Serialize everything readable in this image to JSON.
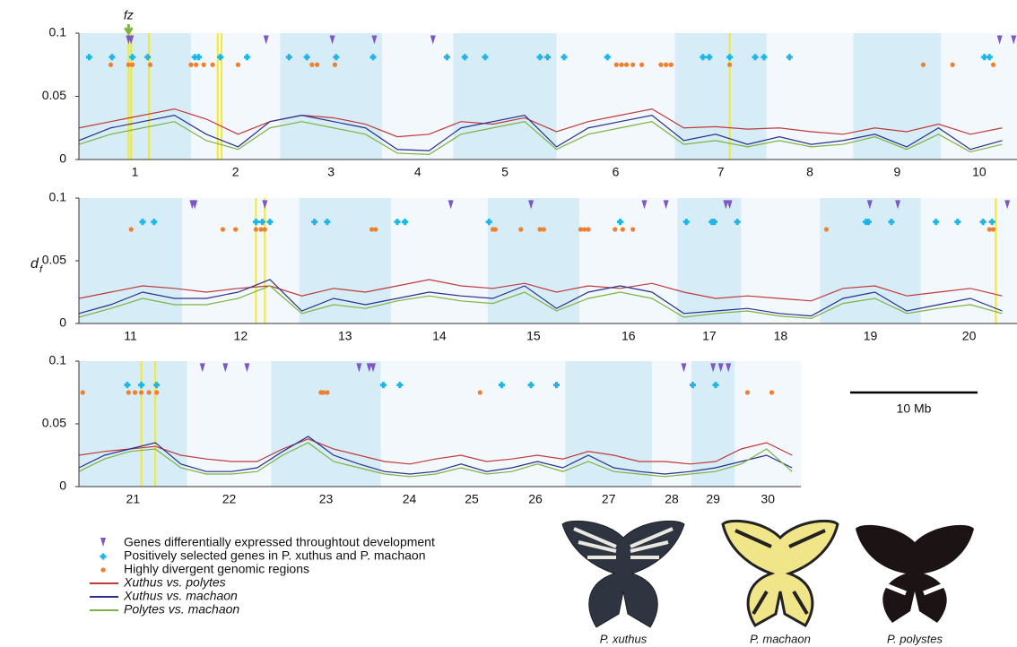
{
  "ylabel": {
    "main": "d",
    "sub": "f"
  },
  "scale_bar": {
    "length": 10,
    "label": "10 Mb"
  },
  "images": [
    {
      "caption": "P. xuthus"
    },
    {
      "caption": "P. machaon"
    },
    {
      "caption": "P. polystes"
    }
  ],
  "chart_data": [
    {
      "type": "line",
      "xlim": [
        0,
        73.7
      ],
      "ylim": [
        0,
        0.1
      ],
      "yticks": [
        0,
        0.05,
        0.1
      ],
      "annotation": {
        "text": "fz",
        "x": 3.9,
        "color": "#7cb342"
      },
      "chromosomes": [
        {
          "label": "1",
          "start": 0,
          "end": 8.8,
          "shaded": true
        },
        {
          "label": "2",
          "start": 8.8,
          "end": 15.8,
          "shaded": false
        },
        {
          "label": "3",
          "start": 15.8,
          "end": 23.8,
          "shaded": true
        },
        {
          "label": "4",
          "start": 23.8,
          "end": 29.4,
          "shaded": false
        },
        {
          "label": "5",
          "start": 29.4,
          "end": 37.5,
          "shaded": true
        },
        {
          "label": "6",
          "start": 37.5,
          "end": 46.8,
          "shaded": false
        },
        {
          "label": "7",
          "start": 46.8,
          "end": 54.0,
          "shaded": true
        },
        {
          "label": "8",
          "start": 54.0,
          "end": 60.8,
          "shaded": false
        },
        {
          "label": "9",
          "start": 60.8,
          "end": 67.7,
          "shaded": true
        },
        {
          "label": "10",
          "start": 67.7,
          "end": 73.7,
          "shaded": false
        }
      ],
      "highlights": {
        "color": "#f2ea2c",
        "x": [
          3.9,
          4.1,
          5.5,
          10.9,
          11.2,
          51.1
        ]
      },
      "markers": [
        {
          "name": "Genes differentially expressed throughtout development",
          "shape": "triangle",
          "color": "#7e57c2",
          "y": 0.094,
          "x": [
            3.9,
            4.1,
            14.7,
            19.9,
            23.2,
            27.8,
            72.3,
            73.4
          ]
        },
        {
          "name": "Positively selected genes in P. xuthus and P. machaon",
          "shape": "cross",
          "color": "#1eb4e6",
          "y": 0.081,
          "x": [
            0.8,
            2.6,
            4.2,
            5.4,
            9.1,
            9.4,
            11.1,
            13.2,
            16.5,
            17.9,
            20.2,
            23.1,
            28.9,
            30.3,
            31.9,
            36.2,
            36.8,
            38.1,
            41.5,
            49.0,
            49.5,
            51.1,
            53.1,
            53.8,
            55.8,
            71.1,
            71.5
          ]
        },
        {
          "name": "Highly divergent genomic regions",
          "shape": "dot",
          "color": "#f07f2e",
          "y": 0.075,
          "x": [
            2.5,
            3.9,
            4.2,
            5.6,
            8.8,
            9.2,
            9.8,
            10.5,
            12.5,
            18.3,
            18.7,
            20.1,
            42.2,
            42.6,
            43.0,
            43.5,
            44.2,
            45.7,
            46.1,
            46.5,
            51.1,
            66.3,
            68.6,
            71.8
          ]
        }
      ],
      "x": [
        0,
        2.5,
        5,
        7.5,
        10,
        12.5,
        15,
        17.5,
        20,
        22.5,
        25,
        27.5,
        30,
        32.5,
        35,
        37.5,
        40,
        42.5,
        45,
        47.5,
        50,
        52.5,
        55,
        57.5,
        60,
        62.5,
        65,
        67.5,
        70,
        72.5
      ],
      "series": [
        {
          "name": "Xuthus vs. polytes",
          "color": "#c0393b",
          "values": [
            0.025,
            0.03,
            0.035,
            0.04,
            0.032,
            0.02,
            0.03,
            0.035,
            0.033,
            0.028,
            0.018,
            0.02,
            0.03,
            0.028,
            0.033,
            0.022,
            0.03,
            0.035,
            0.04,
            0.025,
            0.026,
            0.024,
            0.025,
            0.022,
            0.02,
            0.025,
            0.022,
            0.028,
            0.02,
            0.025
          ]
        },
        {
          "name": "Xuthus vs. machaon",
          "color": "#2a2f8f",
          "values": [
            0.015,
            0.025,
            0.03,
            0.035,
            0.02,
            0.01,
            0.03,
            0.035,
            0.03,
            0.025,
            0.008,
            0.007,
            0.025,
            0.03,
            0.035,
            0.01,
            0.025,
            0.03,
            0.035,
            0.015,
            0.02,
            0.012,
            0.018,
            0.012,
            0.015,
            0.02,
            0.01,
            0.025,
            0.008,
            0.015
          ]
        },
        {
          "name": "Polytes vs. machaon",
          "color": "#7cb342",
          "values": [
            0.012,
            0.02,
            0.025,
            0.03,
            0.015,
            0.008,
            0.025,
            0.03,
            0.025,
            0.02,
            0.005,
            0.004,
            0.02,
            0.025,
            0.03,
            0.008,
            0.02,
            0.025,
            0.03,
            0.012,
            0.015,
            0.01,
            0.015,
            0.01,
            0.012,
            0.018,
            0.008,
            0.02,
            0.006,
            0.012
          ]
        }
      ]
    },
    {
      "type": "line",
      "xlim": [
        0,
        73.7
      ],
      "ylim": [
        0,
        0.1
      ],
      "yticks": [
        0,
        0.05,
        0.1
      ],
      "chromosomes": [
        {
          "label": "11",
          "start": 0,
          "end": 8.1,
          "shaded": true
        },
        {
          "label": "12",
          "start": 8.1,
          "end": 17.3,
          "shaded": false
        },
        {
          "label": "13",
          "start": 17.3,
          "end": 24.5,
          "shaded": true
        },
        {
          "label": "14",
          "start": 24.5,
          "end": 32.1,
          "shaded": false
        },
        {
          "label": "15",
          "start": 32.1,
          "end": 39.3,
          "shaded": true
        },
        {
          "label": "16",
          "start": 39.3,
          "end": 47.0,
          "shaded": false
        },
        {
          "label": "17",
          "start": 47.0,
          "end": 52.0,
          "shaded": true
        },
        {
          "label": "18",
          "start": 52.0,
          "end": 58.2,
          "shaded": false
        },
        {
          "label": "19",
          "start": 58.2,
          "end": 66.1,
          "shaded": true
        },
        {
          "label": "20",
          "start": 66.1,
          "end": 73.7,
          "shaded": false
        }
      ],
      "highlights": {
        "color": "#f2ea2c",
        "x": [
          13.9,
          14.6,
          72.0
        ]
      },
      "markers": [
        {
          "shape": "triangle",
          "color": "#7e57c2",
          "y": 0.094,
          "x": [
            8.9,
            9.1,
            14.6,
            29.2,
            35.5,
            44.4,
            46.1,
            50.8,
            51.1,
            62.1,
            64.3,
            72.9
          ]
        },
        {
          "shape": "cross",
          "color": "#1eb4e6",
          "y": 0.081,
          "x": [
            5.0,
            5.9,
            13.9,
            14.4,
            15.0,
            18.5,
            19.5,
            25.0,
            25.6,
            32.2,
            42.5,
            47.7,
            49.7,
            49.9,
            51.7,
            61.8,
            62.0,
            63.8,
            67.3,
            69.0,
            71.0,
            71.7
          ]
        },
        {
          "shape": "dot",
          "color": "#f07f2e",
          "y": 0.075,
          "x": [
            4.1,
            11.3,
            12.3,
            13.9,
            14.3,
            14.6,
            23.0,
            23.3,
            32.5,
            32.7,
            34.7,
            36.2,
            36.5,
            39.4,
            39.7,
            40.0,
            42.1,
            42.7,
            43.5,
            58.7,
            71.5,
            71.8
          ]
        }
      ],
      "x": [
        0,
        2.5,
        5,
        7.5,
        10,
        12.5,
        15,
        17.5,
        20,
        22.5,
        25,
        27.5,
        30,
        32.5,
        35,
        37.5,
        40,
        42.5,
        45,
        47.5,
        50,
        52.5,
        55,
        57.5,
        60,
        62.5,
        65,
        67.5,
        70,
        72.5
      ],
      "series": [
        {
          "color": "#c0393b",
          "values": [
            0.02,
            0.025,
            0.03,
            0.028,
            0.025,
            0.028,
            0.03,
            0.022,
            0.028,
            0.025,
            0.03,
            0.035,
            0.03,
            0.028,
            0.032,
            0.025,
            0.03,
            0.028,
            0.032,
            0.025,
            0.02,
            0.022,
            0.02,
            0.018,
            0.028,
            0.03,
            0.022,
            0.025,
            0.028,
            0.022
          ]
        },
        {
          "color": "#2a2f8f",
          "values": [
            0.008,
            0.015,
            0.025,
            0.02,
            0.02,
            0.025,
            0.035,
            0.01,
            0.02,
            0.015,
            0.02,
            0.025,
            0.022,
            0.02,
            0.03,
            0.012,
            0.025,
            0.03,
            0.025,
            0.008,
            0.01,
            0.012,
            0.008,
            0.006,
            0.02,
            0.025,
            0.01,
            0.015,
            0.02,
            0.01
          ]
        },
        {
          "color": "#7cb342",
          "values": [
            0.005,
            0.012,
            0.02,
            0.015,
            0.015,
            0.02,
            0.03,
            0.008,
            0.015,
            0.012,
            0.018,
            0.022,
            0.018,
            0.016,
            0.025,
            0.01,
            0.02,
            0.025,
            0.02,
            0.005,
            0.008,
            0.01,
            0.006,
            0.004,
            0.016,
            0.02,
            0.008,
            0.012,
            0.015,
            0.008
          ]
        }
      ]
    },
    {
      "type": "line",
      "xlim": [
        0,
        56.7
      ],
      "ylim": [
        0,
        0.1
      ],
      "yticks": [
        0,
        0.05,
        0.1
      ],
      "chromosomes": [
        {
          "label": "21",
          "start": 0,
          "end": 8.5,
          "shaded": true
        },
        {
          "label": "22",
          "start": 8.5,
          "end": 15.1,
          "shaded": false
        },
        {
          "label": "23",
          "start": 15.1,
          "end": 23.7,
          "shaded": true
        },
        {
          "label": "24",
          "start": 23.7,
          "end": 28.2,
          "shaded": false
        },
        {
          "label": "25",
          "start": 28.2,
          "end": 33.5,
          "shaded": false
        },
        {
          "label": "26",
          "start": 33.5,
          "end": 38.2,
          "shaded": false
        },
        {
          "label": "27",
          "start": 38.2,
          "end": 45.0,
          "shaded": true
        },
        {
          "label": "28",
          "start": 45.0,
          "end": 48.1,
          "shaded": false
        },
        {
          "label": "29",
          "start": 48.1,
          "end": 51.5,
          "shaded": true
        },
        {
          "label": "30",
          "start": 51.5,
          "end": 56.7,
          "shaded": false
        }
      ],
      "highlights": {
        "color": "#f2ea2c",
        "x": [
          4.9,
          6.0
        ]
      },
      "markers": [
        {
          "shape": "triangle",
          "color": "#7e57c2",
          "y": 0.094,
          "x": [
            9.7,
            11.5,
            13.2,
            22.0,
            22.8,
            23.1,
            47.5,
            49.8,
            50.4,
            51.0
          ]
        },
        {
          "shape": "cross",
          "color": "#1eb4e6",
          "y": 0.081,
          "x": [
            3.8,
            4.9,
            6.1,
            23.9,
            25.2,
            33.2,
            35.5,
            37.5,
            48.2,
            50.0
          ]
        },
        {
          "shape": "dot",
          "color": "#f07f2e",
          "y": 0.075,
          "x": [
            0.3,
            3.9,
            4.4,
            4.9,
            5.5,
            6.1,
            19.0,
            19.2,
            19.5,
            31.5,
            52.5,
            54.4
          ]
        }
      ],
      "x": [
        0,
        2,
        4,
        6,
        8,
        10,
        12,
        14,
        16,
        18,
        20,
        22,
        24,
        26,
        28,
        30,
        32,
        34,
        36,
        38,
        40,
        42,
        44,
        46,
        48,
        50,
        52,
        54,
        56
      ],
      "series": [
        {
          "color": "#c0393b",
          "values": [
            0.025,
            0.028,
            0.03,
            0.032,
            0.025,
            0.022,
            0.02,
            0.02,
            0.03,
            0.038,
            0.03,
            0.025,
            0.02,
            0.018,
            0.022,
            0.025,
            0.02,
            0.022,
            0.025,
            0.022,
            0.028,
            0.025,
            0.02,
            0.02,
            0.018,
            0.02,
            0.03,
            0.035,
            0.025
          ]
        },
        {
          "color": "#2a2f8f",
          "values": [
            0.015,
            0.025,
            0.03,
            0.035,
            0.018,
            0.012,
            0.012,
            0.015,
            0.028,
            0.04,
            0.025,
            0.018,
            0.012,
            0.01,
            0.012,
            0.018,
            0.012,
            0.015,
            0.02,
            0.015,
            0.025,
            0.015,
            0.012,
            0.01,
            0.012,
            0.015,
            0.02,
            0.025,
            0.015
          ]
        },
        {
          "color": "#7cb342",
          "values": [
            0.012,
            0.022,
            0.028,
            0.03,
            0.015,
            0.01,
            0.01,
            0.012,
            0.025,
            0.035,
            0.02,
            0.015,
            0.01,
            0.008,
            0.01,
            0.015,
            0.01,
            0.012,
            0.018,
            0.012,
            0.02,
            0.012,
            0.01,
            0.008,
            0.01,
            0.012,
            0.018,
            0.03,
            0.012
          ]
        }
      ]
    }
  ]
}
